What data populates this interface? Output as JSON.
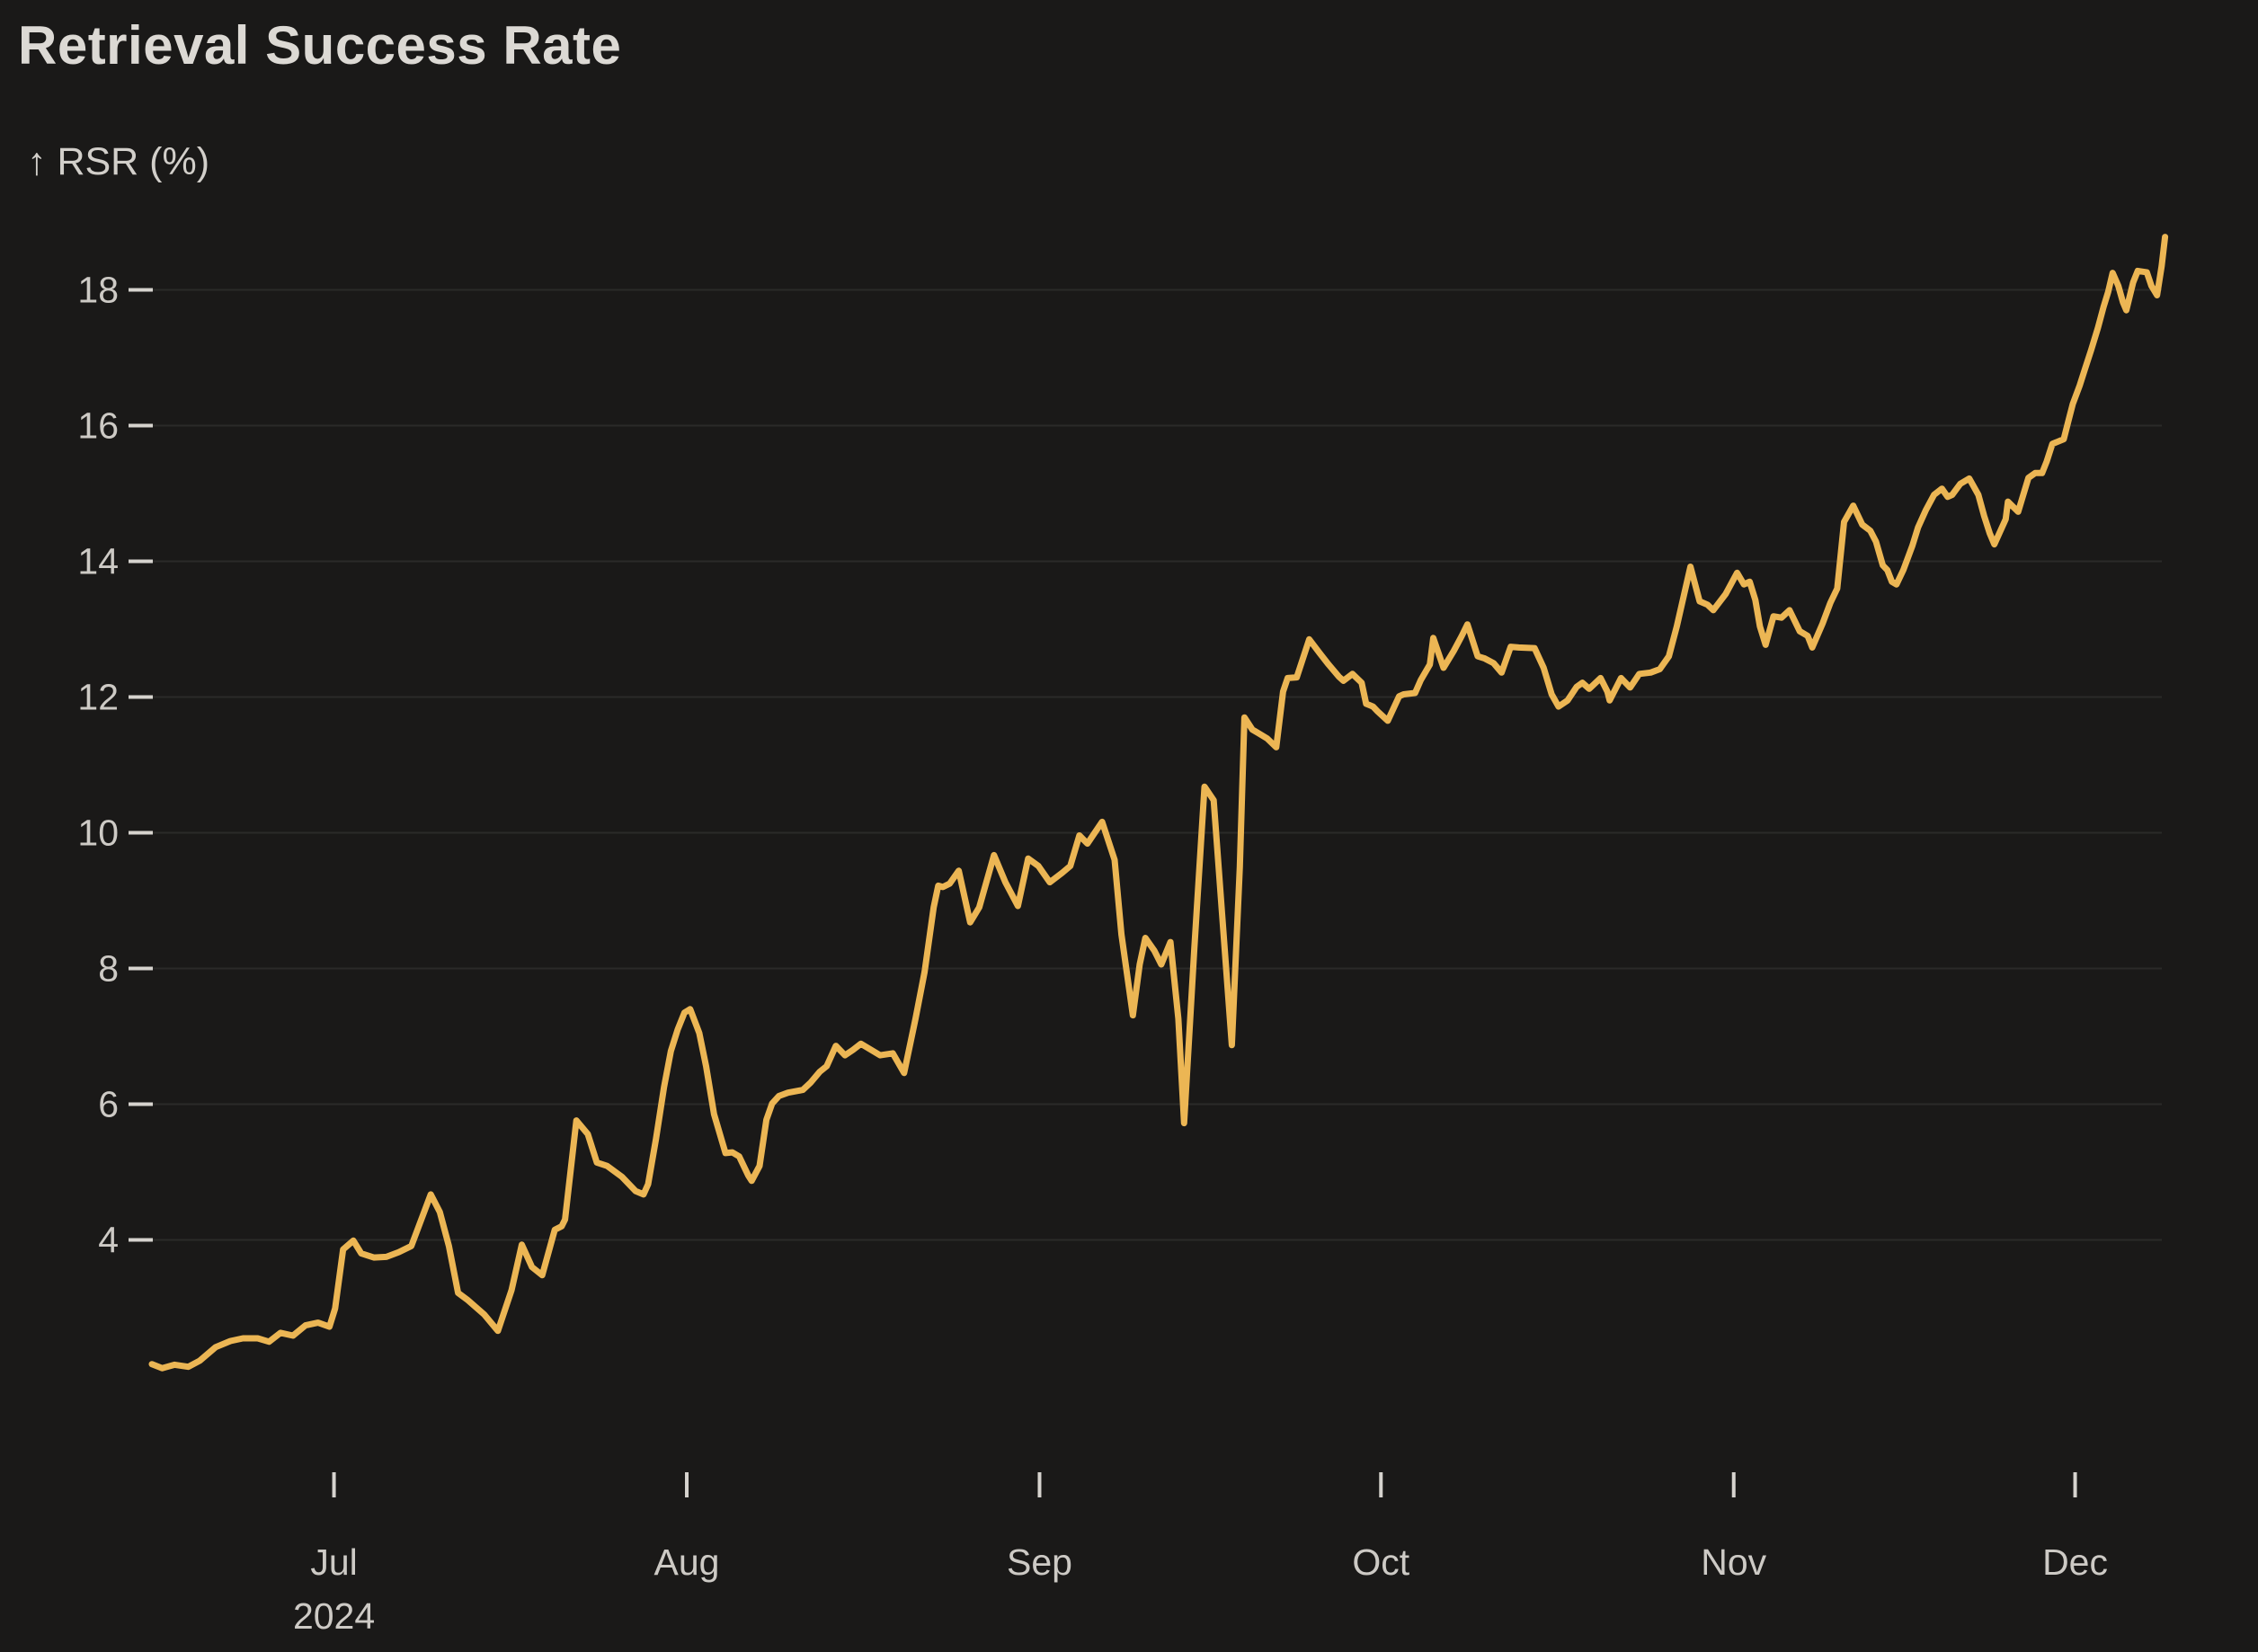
{
  "header": {
    "title": "Retrieval Success Rate"
  },
  "chart_data": {
    "type": "line",
    "title": "Retrieval Success Rate",
    "y_axis_label": "↑ RSR (%)",
    "xlabel": "",
    "ylabel": "RSR (%)",
    "x_start_date": "2024-06-15",
    "x_end_date": "2024-12-09",
    "ylim": [
      1.5,
      19.5
    ],
    "grid": true,
    "legend": false,
    "line_color": "#ECB654",
    "background_color": "#1A1918",
    "gridline_color": "#2B2A29",
    "tick_mark_color": "#D6D3CE",
    "tick_label_color": "#CDCAC5",
    "y_ticks": [
      4,
      6,
      8,
      10,
      12,
      14,
      16,
      18
    ],
    "x_ticks": [
      {
        "label": "Jul",
        "year": "2024",
        "day": 16
      },
      {
        "label": "Aug",
        "day": 47
      },
      {
        "label": "Sep",
        "day": 78
      },
      {
        "label": "Oct",
        "day": 108
      },
      {
        "label": "Nov",
        "day": 139
      },
      {
        "label": "Dec",
        "day": 169
      }
    ],
    "series": [
      {
        "name": "RSR (%)",
        "points": [
          [
            0,
            2.17
          ],
          [
            0.9,
            2.11
          ],
          [
            2,
            2.16
          ],
          [
            3.2,
            2.13
          ],
          [
            4.2,
            2.22
          ],
          [
            5.6,
            2.42
          ],
          [
            6.9,
            2.51
          ],
          [
            8,
            2.55
          ],
          [
            9.3,
            2.55
          ],
          [
            10.3,
            2.5
          ],
          [
            11.3,
            2.63
          ],
          [
            12.4,
            2.59
          ],
          [
            13.5,
            2.74
          ],
          [
            14.6,
            2.78
          ],
          [
            15.6,
            2.72
          ],
          [
            16.1,
            2.99
          ],
          [
            16.8,
            3.86
          ],
          [
            17.7,
            3.99
          ],
          [
            18.4,
            3.8
          ],
          [
            19.5,
            3.74
          ],
          [
            20.6,
            3.75
          ],
          [
            21.7,
            3.82
          ],
          [
            22.8,
            3.91
          ],
          [
            24.5,
            4.67
          ],
          [
            25.3,
            4.41
          ],
          [
            26.1,
            3.91
          ],
          [
            26.9,
            3.22
          ],
          [
            27.7,
            3.12
          ],
          [
            29.2,
            2.9
          ],
          [
            30.4,
            2.66
          ],
          [
            31.6,
            3.26
          ],
          [
            32.5,
            3.93
          ],
          [
            33.4,
            3.6
          ],
          [
            34.3,
            3.48
          ],
          [
            35.4,
            4.15
          ],
          [
            36,
            4.2
          ],
          [
            36.3,
            4.3
          ],
          [
            37.3,
            5.76
          ],
          [
            38.3,
            5.56
          ],
          [
            39.1,
            5.14
          ],
          [
            40,
            5.09
          ],
          [
            41.3,
            4.93
          ],
          [
            42.5,
            4.72
          ],
          [
            43.2,
            4.67
          ],
          [
            43.6,
            4.82
          ],
          [
            44.3,
            5.49
          ],
          [
            45,
            6.25
          ],
          [
            45.6,
            6.78
          ],
          [
            46.2,
            7.1
          ],
          [
            46.8,
            7.35
          ],
          [
            47.3,
            7.4
          ],
          [
            48.1,
            7.05
          ],
          [
            48.7,
            6.56
          ],
          [
            49.4,
            5.85
          ],
          [
            50.4,
            5.28
          ],
          [
            51,
            5.29
          ],
          [
            51.6,
            5.23
          ],
          [
            52.4,
            4.95
          ],
          [
            52.7,
            4.87
          ],
          [
            53.4,
            5.09
          ],
          [
            54,
            5.77
          ],
          [
            54.5,
            6.01
          ],
          [
            55.1,
            6.12
          ],
          [
            55.9,
            6.17
          ],
          [
            57.2,
            6.21
          ],
          [
            57.9,
            6.32
          ],
          [
            58.7,
            6.48
          ],
          [
            59.3,
            6.56
          ],
          [
            60.1,
            6.86
          ],
          [
            60.9,
            6.72
          ],
          [
            61.6,
            6.8
          ],
          [
            62.3,
            6.89
          ],
          [
            64,
            6.72
          ],
          [
            65.1,
            6.75
          ],
          [
            66.1,
            6.46
          ],
          [
            67.1,
            7.26
          ],
          [
            67.9,
            7.95
          ],
          [
            68.7,
            8.9
          ],
          [
            69.1,
            9.22
          ],
          [
            69.5,
            9.2
          ],
          [
            70.1,
            9.25
          ],
          [
            70.9,
            9.44
          ],
          [
            71.9,
            8.68
          ],
          [
            72.7,
            8.9
          ],
          [
            74,
            9.67
          ],
          [
            75,
            9.27
          ],
          [
            76.1,
            8.92
          ],
          [
            77,
            9.62
          ],
          [
            77.9,
            9.51
          ],
          [
            78.9,
            9.27
          ],
          [
            80,
            9.41
          ],
          [
            80.7,
            9.51
          ],
          [
            81.5,
            9.96
          ],
          [
            82.2,
            9.84
          ],
          [
            83.5,
            10.16
          ],
          [
            84.6,
            9.6
          ],
          [
            85.2,
            8.5
          ],
          [
            86.2,
            7.31
          ],
          [
            86.8,
            8.06
          ],
          [
            87.3,
            8.45
          ],
          [
            88.1,
            8.26
          ],
          [
            88.7,
            8.06
          ],
          [
            89.5,
            8.39
          ],
          [
            90.2,
            7.26
          ],
          [
            90.7,
            5.72
          ],
          [
            91.6,
            8.3
          ],
          [
            92.5,
            10.68
          ],
          [
            93.3,
            10.48
          ],
          [
            94,
            8.9
          ],
          [
            94.9,
            6.87
          ],
          [
            95.6,
            9.5
          ],
          [
            96,
            11.7
          ],
          [
            96.7,
            11.52
          ],
          [
            98,
            11.39
          ],
          [
            98.8,
            11.26
          ],
          [
            99.4,
            12.08
          ],
          [
            99.8,
            12.28
          ],
          [
            100.6,
            12.29
          ],
          [
            101.7,
            12.85
          ],
          [
            102.6,
            12.65
          ],
          [
            103.4,
            12.48
          ],
          [
            104.3,
            12.3
          ],
          [
            104.7,
            12.24
          ],
          [
            105.5,
            12.34
          ],
          [
            106.3,
            12.21
          ],
          [
            106.7,
            11.9
          ],
          [
            107.3,
            11.86
          ],
          [
            107.7,
            11.79
          ],
          [
            108.6,
            11.65
          ],
          [
            109.6,
            12.01
          ],
          [
            110,
            12.04
          ],
          [
            111,
            12.06
          ],
          [
            111.5,
            12.25
          ],
          [
            112.3,
            12.48
          ],
          [
            112.6,
            12.87
          ],
          [
            113.5,
            12.43
          ],
          [
            114.4,
            12.68
          ],
          [
            115.1,
            12.9
          ],
          [
            115.6,
            13.07
          ],
          [
            116.5,
            12.6
          ],
          [
            117.1,
            12.57
          ],
          [
            117.9,
            12.5
          ],
          [
            118.6,
            12.36
          ],
          [
            119.4,
            12.74
          ],
          [
            120.1,
            12.73
          ],
          [
            121.5,
            12.72
          ],
          [
            122.3,
            12.43
          ],
          [
            123,
            12.04
          ],
          [
            123.6,
            11.86
          ],
          [
            124.4,
            11.95
          ],
          [
            125.2,
            12.15
          ],
          [
            125.7,
            12.21
          ],
          [
            126.3,
            12.12
          ],
          [
            127.3,
            12.28
          ],
          [
            127.9,
            12.08
          ],
          [
            128.1,
            11.95
          ],
          [
            129.1,
            12.28
          ],
          [
            129.9,
            12.14
          ],
          [
            130.7,
            12.34
          ],
          [
            131.7,
            12.36
          ],
          [
            132.5,
            12.41
          ],
          [
            133.3,
            12.6
          ],
          [
            134,
            13.04
          ],
          [
            135.2,
            13.92
          ],
          [
            136,
            13.41
          ],
          [
            136.7,
            13.36
          ],
          [
            137.2,
            13.28
          ],
          [
            138.3,
            13.52
          ],
          [
            139.3,
            13.83
          ],
          [
            139.9,
            13.66
          ],
          [
            140.4,
            13.7
          ],
          [
            140.9,
            13.43
          ],
          [
            141.3,
            13.04
          ],
          [
            141.8,
            12.77
          ],
          [
            142.5,
            13.19
          ],
          [
            143.2,
            13.17
          ],
          [
            143.9,
            13.28
          ],
          [
            144.8,
            12.97
          ],
          [
            145.5,
            12.9
          ],
          [
            145.9,
            12.73
          ],
          [
            146.8,
            13.08
          ],
          [
            147.5,
            13.39
          ],
          [
            148.1,
            13.6
          ],
          [
            148.7,
            14.58
          ],
          [
            149.5,
            14.82
          ],
          [
            150.3,
            14.54
          ],
          [
            151,
            14.45
          ],
          [
            151.5,
            14.29
          ],
          [
            152.1,
            13.94
          ],
          [
            152.5,
            13.87
          ],
          [
            152.9,
            13.7
          ],
          [
            153.3,
            13.66
          ],
          [
            153.9,
            13.87
          ],
          [
            154.7,
            14.23
          ],
          [
            155.2,
            14.5
          ],
          [
            155.9,
            14.76
          ],
          [
            156.6,
            14.98
          ],
          [
            157.3,
            15.07
          ],
          [
            157.8,
            14.95
          ],
          [
            158.2,
            14.98
          ],
          [
            158.9,
            15.14
          ],
          [
            159.7,
            15.22
          ],
          [
            160.5,
            14.98
          ],
          [
            161,
            14.67
          ],
          [
            161.5,
            14.41
          ],
          [
            161.9,
            14.25
          ],
          [
            162.9,
            14.62
          ],
          [
            163.1,
            14.88
          ],
          [
            164,
            14.73
          ],
          [
            164.9,
            15.23
          ],
          [
            165.5,
            15.3
          ],
          [
            166.1,
            15.3
          ],
          [
            166.5,
            15.47
          ],
          [
            167,
            15.73
          ],
          [
            168,
            15.8
          ],
          [
            168.4,
            16.06
          ],
          [
            168.8,
            16.32
          ],
          [
            169.4,
            16.59
          ],
          [
            169.9,
            16.85
          ],
          [
            170.4,
            17.11
          ],
          [
            171,
            17.44
          ],
          [
            171.5,
            17.75
          ],
          [
            171.9,
            17.97
          ],
          [
            172.3,
            18.25
          ],
          [
            172.8,
            18.06
          ],
          [
            173.2,
            17.82
          ],
          [
            173.5,
            17.7
          ],
          [
            174.1,
            18.11
          ],
          [
            174.5,
            18.28
          ],
          [
            175.3,
            18.26
          ],
          [
            175.7,
            18.06
          ],
          [
            176.2,
            17.92
          ],
          [
            176.6,
            18.35
          ],
          [
            176.9,
            18.78
          ]
        ]
      }
    ]
  }
}
